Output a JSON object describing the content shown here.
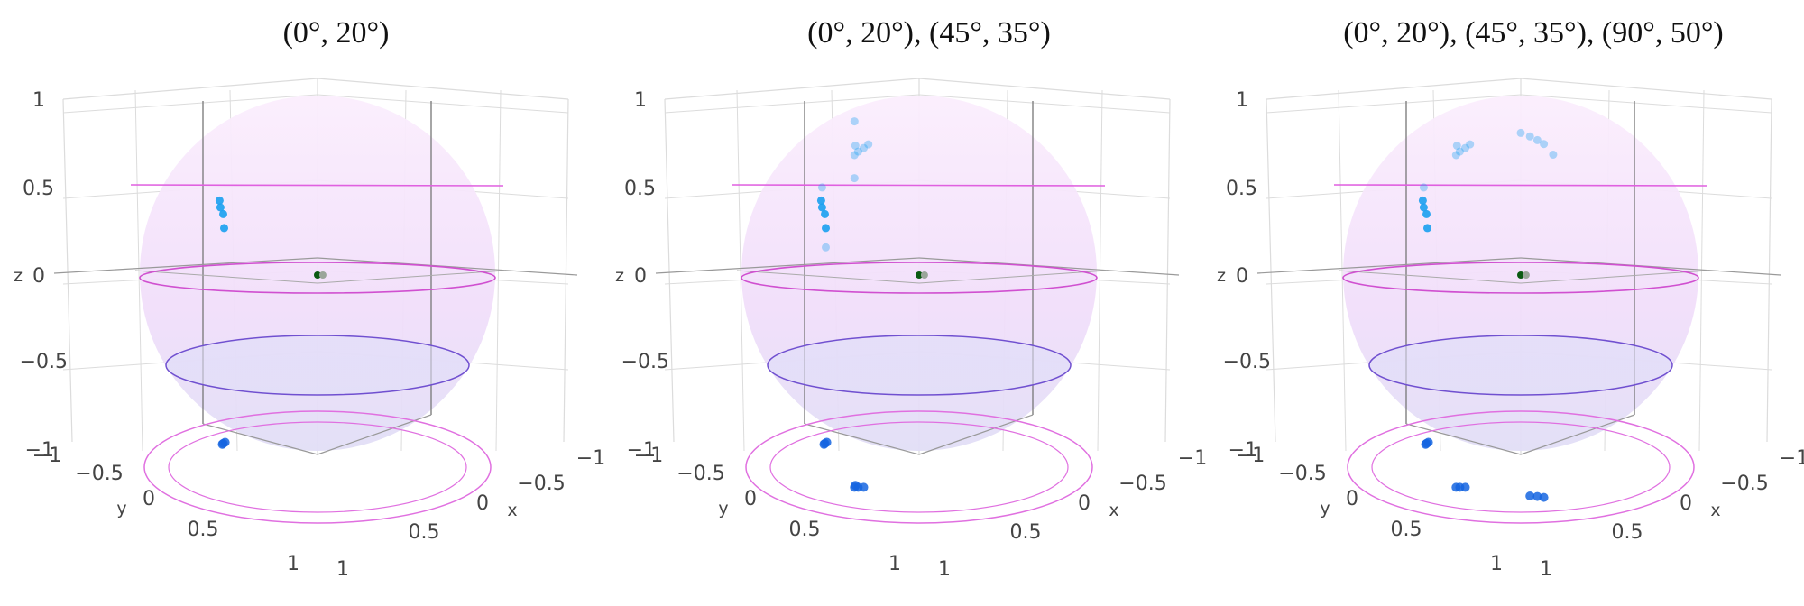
{
  "chart_data": [
    {
      "type": "scatter",
      "title": "(0°, 20°)",
      "axes": {
        "x_label": "x",
        "y_label": "y",
        "z_label": "z",
        "range": [
          -1,
          1
        ]
      },
      "z_ticks": [
        "1",
        "0.5",
        "0",
        "−0.5",
        "−1"
      ],
      "x_ticks": [
        "−1",
        "−0.5",
        "0",
        "0.5",
        "1"
      ],
      "y_ticks": [
        "−1",
        "−0.5",
        "0",
        "0.5",
        "1"
      ],
      "sphere_color": "#f3d3f7",
      "circle_colors": {
        "upper": "#e060e0",
        "equator": "#d050d0",
        "lower": "#7050d0",
        "floor": "#e070e0"
      },
      "points_surface": [
        [
          -0.93,
          0.12,
          0.33
        ],
        [
          -0.94,
          0.08,
          0.29
        ],
        [
          -0.95,
          0.06,
          0.21
        ],
        [
          -0.92,
          0.14,
          0.37
        ]
      ],
      "points_floor": [
        [
          -0.92,
          0.1
        ],
        [
          -0.93,
          0.07
        ],
        [
          -0.91,
          0.12
        ]
      ],
      "center_points": [
        [
          0,
          0,
          0
        ],
        [
          0.03,
          0,
          0
        ]
      ]
    },
    {
      "type": "scatter",
      "title": "(0°, 20°), (45°, 35°)",
      "axes": {
        "x_label": "x",
        "y_label": "y",
        "z_label": "z",
        "range": [
          -1,
          1
        ]
      },
      "z_ticks": [
        "1",
        "0.5",
        "0",
        "−0.5",
        "−1"
      ],
      "x_ticks": [
        "−1",
        "−0.5",
        "0",
        "0.5",
        "1"
      ],
      "y_ticks": [
        "−1",
        "−0.5",
        "0",
        "0.5",
        "1"
      ],
      "sphere_color": "#f3d3f7",
      "circle_colors": {
        "upper": "#e060e0",
        "equator": "#d050d0",
        "lower": "#7050d0",
        "floor": "#e070e0"
      },
      "points_surface": [
        [
          -0.93,
          0.12,
          0.33
        ],
        [
          -0.94,
          0.08,
          0.29
        ],
        [
          -0.95,
          0.06,
          0.21
        ],
        [
          -0.92,
          0.14,
          0.37
        ],
        [
          -0.85,
          0.2,
          0.45
        ],
        [
          -0.96,
          0.05,
          0.1
        ],
        [
          0.02,
          0.68,
          0.72
        ],
        [
          0.05,
          0.65,
          0.74
        ],
        [
          0.0,
          0.7,
          0.7
        ],
        [
          -0.03,
          0.66,
          0.75
        ],
        [
          0.07,
          0.62,
          0.76
        ],
        [
          -0.2,
          0.5,
          0.55
        ],
        [
          0.1,
          0.8,
          0.9
        ]
      ],
      "points_floor": [
        [
          -0.92,
          0.1
        ],
        [
          -0.93,
          0.07
        ],
        [
          -0.91,
          0.12
        ],
        [
          0.02,
          0.68
        ],
        [
          0.05,
          0.65
        ],
        [
          0.0,
          0.7
        ],
        [
          -0.03,
          0.66
        ]
      ],
      "center_points": [
        [
          0,
          0,
          0
        ],
        [
          0.03,
          0,
          0
        ]
      ]
    },
    {
      "type": "scatter",
      "title": "(0°, 20°), (45°, 35°), (90°, 50°)",
      "axes": {
        "x_label": "x",
        "y_label": "y",
        "z_label": "z",
        "range": [
          -1,
          1
        ]
      },
      "z_ticks": [
        "1",
        "0.5",
        "0",
        "−0.5",
        "−1"
      ],
      "x_ticks": [
        "−1",
        "−0.5",
        "0",
        "0.5",
        "1"
      ],
      "y_ticks": [
        "−1",
        "−0.5",
        "0",
        "0.5",
        "1"
      ],
      "sphere_color": "#f3d3f7",
      "circle_colors": {
        "upper": "#e060e0",
        "equator": "#d050d0",
        "lower": "#7050d0",
        "floor": "#e070e0"
      },
      "points_surface": [
        [
          -0.93,
          0.12,
          0.33
        ],
        [
          -0.94,
          0.08,
          0.29
        ],
        [
          -0.95,
          0.06,
          0.21
        ],
        [
          -0.92,
          0.14,
          0.37
        ],
        [
          -0.85,
          0.2,
          0.45
        ],
        [
          0.02,
          0.68,
          0.72
        ],
        [
          0.05,
          0.65,
          0.74
        ],
        [
          0.0,
          0.7,
          0.7
        ],
        [
          -0.03,
          0.66,
          0.75
        ],
        [
          0.07,
          0.62,
          0.76
        ],
        [
          0.55,
          0.45,
          0.82
        ],
        [
          0.6,
          0.42,
          0.8
        ],
        [
          0.65,
          0.4,
          0.78
        ],
        [
          0.5,
          0.5,
          0.84
        ],
        [
          0.7,
          0.35,
          0.72
        ]
      ],
      "points_floor": [
        [
          -0.92,
          0.1
        ],
        [
          -0.93,
          0.07
        ],
        [
          -0.91,
          0.12
        ],
        [
          0.02,
          0.68
        ],
        [
          0.05,
          0.65
        ],
        [
          0.0,
          0.7
        ],
        [
          0.55,
          0.45
        ],
        [
          0.6,
          0.42
        ],
        [
          0.65,
          0.4
        ]
      ],
      "center_points": [
        [
          0,
          0,
          0
        ],
        [
          0.03,
          0,
          0
        ]
      ]
    }
  ]
}
